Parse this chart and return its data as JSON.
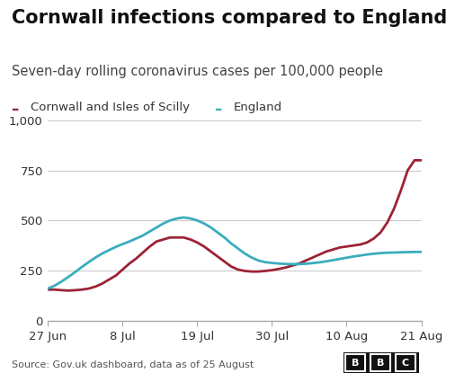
{
  "title": "Cornwall infections compared to England",
  "subtitle": "Seven-day rolling coronavirus cases per 100,000 people",
  "legend": [
    "Cornwall and Isles of Scilly",
    "England"
  ],
  "legend_colors": [
    "#9b2335",
    "#3aadbd"
  ],
  "x_tick_labels": [
    "27 Jun",
    "8 Jul",
    "19 Jul",
    "30 Jul",
    "10 Aug",
    "21 Aug"
  ],
  "x_tick_positions": [
    0,
    11,
    22,
    33,
    44,
    55
  ],
  "ylim": [
    0,
    1000
  ],
  "yticks": [
    0,
    250,
    500,
    750,
    1000
  ],
  "ytick_labels": [
    "0",
    "250",
    "500",
    "750",
    "1,000"
  ],
  "source": "Source: Gov.uk dashboard, data as of 25 August",
  "cornwall": [
    155,
    155,
    152,
    150,
    152,
    155,
    160,
    170,
    185,
    205,
    225,
    255,
    285,
    310,
    340,
    370,
    395,
    405,
    415,
    415,
    415,
    405,
    390,
    370,
    345,
    320,
    295,
    270,
    255,
    248,
    245,
    245,
    248,
    252,
    258,
    265,
    275,
    285,
    300,
    315,
    330,
    345,
    355,
    365,
    370,
    375,
    380,
    390,
    410,
    440,
    490,
    560,
    650,
    750,
    800,
    800
  ],
  "england": [
    160,
    175,
    195,
    218,
    242,
    268,
    292,
    315,
    335,
    352,
    368,
    382,
    395,
    410,
    425,
    445,
    465,
    485,
    500,
    510,
    515,
    510,
    500,
    485,
    465,
    440,
    415,
    385,
    360,
    335,
    315,
    300,
    292,
    288,
    285,
    283,
    282,
    282,
    284,
    287,
    291,
    296,
    302,
    308,
    314,
    320,
    325,
    330,
    334,
    337,
    339,
    340,
    341,
    342,
    343,
    343
  ],
  "background_color": "#ffffff",
  "grid_color": "#cccccc",
  "line_width": 2.0,
  "title_fontsize": 15,
  "subtitle_fontsize": 10.5,
  "tick_fontsize": 9.5,
  "legend_fontsize": 9.5,
  "source_fontsize": 8.0
}
